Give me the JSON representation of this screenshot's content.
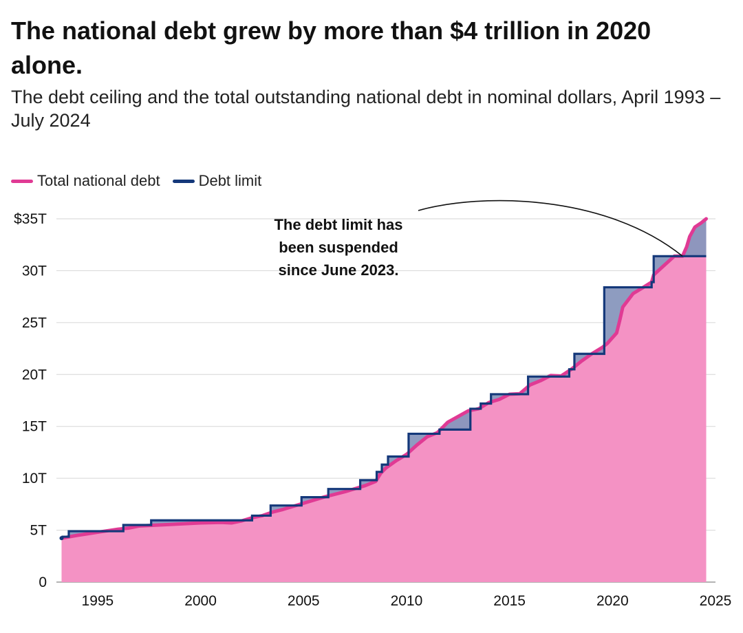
{
  "chart_data": {
    "type": "line",
    "title": "The national debt grew by more than $4 trillion in 2020 alone.",
    "subtitle": "The debt ceiling and the total outstanding national debt in nominal dollars, April 1993 –July 2024",
    "x_range": [
      1993,
      2025
    ],
    "y_range": [
      0,
      36
    ],
    "x_ticks": [
      {
        "value": 1995,
        "label": "1995"
      },
      {
        "value": 2000,
        "label": "2000"
      },
      {
        "value": 2005,
        "label": "2005"
      },
      {
        "value": 2010,
        "label": "2010"
      },
      {
        "value": 2015,
        "label": "2015"
      },
      {
        "value": 2020,
        "label": "2020"
      },
      {
        "value": 2025,
        "label": "2025"
      }
    ],
    "y_ticks": [
      {
        "value": 0,
        "label": "0"
      },
      {
        "value": 5,
        "label": "5T"
      },
      {
        "value": 10,
        "label": "10T"
      },
      {
        "value": 15,
        "label": "15T"
      },
      {
        "value": 20,
        "label": "20T"
      },
      {
        "value": 25,
        "label": "25T"
      },
      {
        "value": 30,
        "label": "30T"
      },
      {
        "value": 35,
        "label": "$35T"
      }
    ],
    "grid": true,
    "legend": {
      "placement": "top-left",
      "items": [
        {
          "label": "Total national debt",
          "color": "#e03a94"
        },
        {
          "label": "Debt limit",
          "color": "#14387a"
        }
      ]
    },
    "series": [
      {
        "name": "Total national debt",
        "color": "#e03a94",
        "fill": "#f492c4",
        "points": [
          [
            1993.25,
            4.23
          ],
          [
            1994.0,
            4.5
          ],
          [
            1995.0,
            4.8
          ],
          [
            1996.0,
            5.1
          ],
          [
            1996.5,
            5.2
          ],
          [
            1997.0,
            5.4
          ],
          [
            1998.0,
            5.5
          ],
          [
            1999.0,
            5.6
          ],
          [
            2000.0,
            5.7
          ],
          [
            2001.0,
            5.75
          ],
          [
            2001.5,
            5.7
          ],
          [
            2002.0,
            5.9
          ],
          [
            2002.5,
            6.2
          ],
          [
            2003.0,
            6.4
          ],
          [
            2003.5,
            6.75
          ],
          [
            2004.0,
            7.0
          ],
          [
            2005.0,
            7.6
          ],
          [
            2006.0,
            8.2
          ],
          [
            2007.0,
            8.7
          ],
          [
            2008.0,
            9.3
          ],
          [
            2008.5,
            9.7
          ],
          [
            2008.75,
            10.5
          ],
          [
            2009.0,
            11.0
          ],
          [
            2009.5,
            11.7
          ],
          [
            2010.0,
            12.3
          ],
          [
            2010.5,
            13.2
          ],
          [
            2011.0,
            14.0
          ],
          [
            2011.5,
            14.4
          ],
          [
            2012.0,
            15.4
          ],
          [
            2013.0,
            16.5
          ],
          [
            2013.5,
            16.7
          ],
          [
            2014.0,
            17.3
          ],
          [
            2014.5,
            17.6
          ],
          [
            2015.0,
            18.1
          ],
          [
            2015.5,
            18.15
          ],
          [
            2016.0,
            19.0
          ],
          [
            2016.5,
            19.4
          ],
          [
            2017.0,
            19.9
          ],
          [
            2017.5,
            19.85
          ],
          [
            2018.0,
            20.5
          ],
          [
            2018.5,
            21.3
          ],
          [
            2019.0,
            22.0
          ],
          [
            2019.5,
            22.6
          ],
          [
            2019.75,
            23.0
          ],
          [
            2020.2,
            24.0
          ],
          [
            2020.35,
            25.2
          ],
          [
            2020.5,
            26.5
          ],
          [
            2021.0,
            27.8
          ],
          [
            2021.5,
            28.4
          ],
          [
            2021.9,
            28.9
          ],
          [
            2022.0,
            29.6
          ],
          [
            2022.5,
            30.5
          ],
          [
            2023.0,
            31.4
          ],
          [
            2023.4,
            31.4
          ],
          [
            2023.6,
            32.3
          ],
          [
            2023.75,
            33.3
          ],
          [
            2024.0,
            34.2
          ],
          [
            2024.3,
            34.6
          ],
          [
            2024.55,
            35.0
          ]
        ]
      },
      {
        "name": "Debt limit",
        "color": "#14387a",
        "area_fill": "#8897bd",
        "step_levels": [
          [
            1993.25,
            4.37
          ],
          [
            1993.6,
            4.9
          ],
          [
            1996.25,
            5.5
          ],
          [
            1997.6,
            5.95
          ],
          [
            2002.5,
            6.4
          ],
          [
            2003.4,
            7.38
          ],
          [
            2004.9,
            8.18
          ],
          [
            2006.2,
            8.97
          ],
          [
            2007.75,
            9.82
          ],
          [
            2008.55,
            10.62
          ],
          [
            2008.8,
            11.32
          ],
          [
            2009.1,
            12.1
          ],
          [
            2010.1,
            14.29
          ],
          [
            2011.6,
            14.69
          ],
          [
            2013.1,
            16.7
          ],
          [
            2013.6,
            17.2
          ],
          [
            2014.1,
            18.1
          ],
          [
            2015.9,
            19.8
          ],
          [
            2017.9,
            20.5
          ],
          [
            2018.15,
            21.99
          ],
          [
            2019.6,
            28.4
          ],
          [
            2021.9,
            28.9
          ],
          [
            2022.0,
            31.4
          ]
        ],
        "suspended_from": 2023.4,
        "end": 2024.55
      }
    ],
    "annotation": {
      "lines": [
        "The debt limit has",
        "been suspended",
        "since June 2023."
      ]
    }
  }
}
